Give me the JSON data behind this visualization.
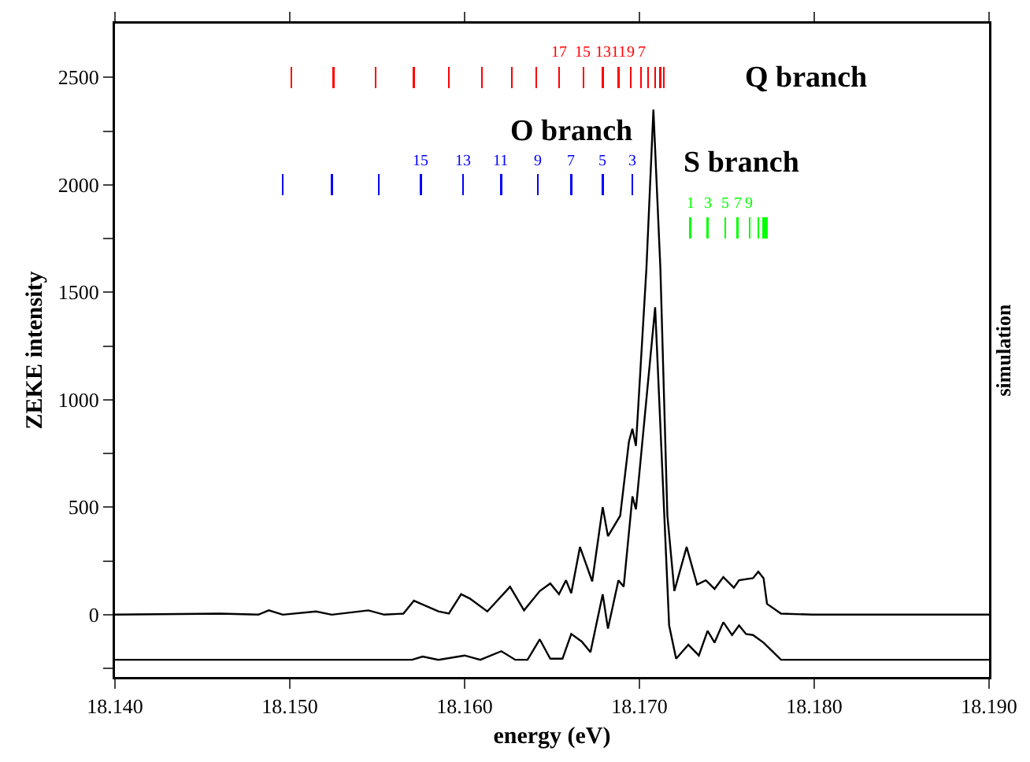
{
  "chart_data": {
    "type": "line",
    "xlabel": "energy (eV)",
    "ylabel": "ZEKE intensity",
    "y2label": "simulation",
    "xlim": [
      18.14,
      18.19
    ],
    "xticks": [
      {
        "value": 18.14,
        "label": "18.140"
      },
      {
        "value": 18.15,
        "label": "18.150"
      },
      {
        "value": 18.16,
        "label": "18.160"
      },
      {
        "value": 18.17,
        "label": "18.170"
      },
      {
        "value": 18.18,
        "label": "18.180"
      },
      {
        "value": 18.19,
        "label": "18.190"
      }
    ],
    "ylim": [
      -290,
      2750
    ],
    "yticks": [
      {
        "value": -250,
        "label": null
      },
      0,
      {
        "value": 250,
        "label": null
      },
      500,
      {
        "value": 750,
        "label": null
      },
      1000,
      {
        "value": 1250,
        "label": null
      },
      1500,
      {
        "value": 1750,
        "label": null
      },
      2000,
      {
        "value": 2250,
        "label": null
      },
      2500
    ],
    "grid": false,
    "legend": false,
    "marker": "none",
    "line_style": "solid",
    "series": [
      {
        "color": "#000000",
        "x": [
          18.14,
          18.146,
          18.1482,
          18.1488,
          18.1496,
          18.1515,
          18.1524,
          18.1545,
          18.1554,
          18.1565,
          18.1571,
          18.1585,
          18.1591,
          18.1598,
          18.1603,
          18.1613,
          18.1626,
          18.1634,
          18.1643,
          18.1649,
          18.1654,
          18.1658,
          18.1661,
          18.1666,
          18.1673,
          18.1679,
          18.1682,
          18.1689,
          18.1694,
          18.1696,
          18.1698,
          18.1704,
          18.1708,
          18.1712,
          18.1716,
          18.172,
          18.1727,
          18.1733,
          18.1738,
          18.1743,
          18.1748,
          18.1754,
          18.1757,
          18.1765,
          18.1768,
          18.1771,
          18.1773,
          18.1781,
          18.1799,
          18.19
        ],
        "values": [
          0,
          5,
          0,
          20,
          0,
          15,
          0,
          20,
          0,
          5,
          65,
          15,
          5,
          95,
          75,
          15,
          130,
          20,
          110,
          145,
          95,
          160,
          100,
          315,
          155,
          500,
          365,
          460,
          805,
          865,
          785,
          1610,
          2350,
          1610,
          460,
          110,
          315,
          140,
          160,
          120,
          175,
          125,
          160,
          170,
          200,
          170,
          50,
          5,
          0,
          0
        ]
      },
      {
        "color": "#000000",
        "x": [
          18.14,
          18.157,
          18.1576,
          18.1585,
          18.16,
          18.1609,
          18.1621,
          18.1629,
          18.1636,
          18.1643,
          18.1649,
          18.1656,
          18.1661,
          18.1667,
          18.1672,
          18.1679,
          18.1682,
          18.1688,
          18.1691,
          18.1696,
          18.1698,
          18.1709,
          18.1717,
          18.1721,
          18.1728,
          18.1734,
          18.1739,
          18.1743,
          18.1748,
          18.1753,
          18.1757,
          18.1761,
          18.1765,
          18.1771,
          18.1781,
          18.19
        ],
        "values": [
          -210,
          -210,
          -195,
          -210,
          -190,
          -210,
          -170,
          -210,
          -210,
          -115,
          -205,
          -205,
          -90,
          -125,
          -175,
          95,
          -65,
          160,
          130,
          550,
          490,
          1430,
          -50,
          -205,
          -140,
          -190,
          -75,
          -130,
          -35,
          -95,
          -50,
          -90,
          -95,
          -130,
          -210,
          -210
        ]
      },
      {
        "type": "bar",
        "name": "Q branch",
        "color": "#ff0000",
        "x": [
          18.1501,
          18.1525,
          18.1549,
          18.1571,
          18.1591,
          18.161,
          18.1627,
          18.1641,
          18.1654,
          18.1668,
          18.1679,
          18.1688,
          18.1695,
          18.1701,
          18.1705,
          18.1709,
          18.1712,
          18.1714
        ],
        "base": [
          2450,
          2450,
          2450,
          2450,
          2450,
          2450,
          2450,
          2450,
          2450,
          2450,
          2450,
          2450,
          2450,
          2450,
          2450,
          2450,
          2450,
          2450
        ],
        "values": [
          100,
          100,
          100,
          100,
          100,
          100,
          100,
          100,
          100,
          100,
          100,
          100,
          100,
          100,
          100,
          100,
          100,
          100
        ]
      },
      {
        "type": "bar",
        "name": "O branch",
        "color": "#0000ff",
        "x": [
          18.1496,
          18.1524,
          18.1551,
          18.1575,
          18.1599,
          18.1621,
          18.1642,
          18.1661,
          18.1679,
          18.1696
        ],
        "base": [
          1950,
          1950,
          1950,
          1950,
          1950,
          1950,
          1950,
          1950,
          1950,
          1950
        ],
        "values": [
          100,
          100,
          100,
          100,
          100,
          100,
          100,
          100,
          100,
          100
        ]
      },
      {
        "type": "bar",
        "name": "S branch",
        "color": "#00ff00",
        "x": [
          18.1729,
          18.1739,
          18.1749,
          18.1756,
          18.1763,
          18.1768,
          18.1771,
          18.1772,
          18.1773
        ],
        "base": [
          1750,
          1750,
          1750,
          1750,
          1750,
          1750,
          1750,
          1750,
          1750
        ],
        "values": [
          100,
          100,
          100,
          100,
          100,
          100,
          100,
          100,
          100
        ]
      }
    ],
    "annotations": [
      {
        "text": "17",
        "x": 18.1654,
        "y": 2550
      },
      {
        "text": "15",
        "x": 18.1668,
        "y": 2550
      },
      {
        "text": "13",
        "x": 18.1679,
        "y": 2550
      },
      {
        "text": "11",
        "x": 18.1688,
        "y": 2550
      },
      {
        "text": "9",
        "x": 18.1695,
        "y": 2550
      },
      {
        "text": "7",
        "x": 18.1701,
        "y": 2550
      },
      {
        "text": "15",
        "x": 18.1575,
        "y": 2050
      },
      {
        "text": "13",
        "x": 18.1599,
        "y": 2050
      },
      {
        "text": "11",
        "x": 18.1621,
        "y": 2050
      },
      {
        "text": "9",
        "x": 18.1642,
        "y": 2050
      },
      {
        "text": "7",
        "x": 18.1661,
        "y": 2050
      },
      {
        "text": "5",
        "x": 18.1679,
        "y": 2050
      },
      {
        "text": "3",
        "x": 18.1696,
        "y": 2050
      },
      {
        "text": "1",
        "x": 18.1729,
        "y": 1850
      },
      {
        "text": "3",
        "x": 18.1739,
        "y": 1850
      },
      {
        "text": "5",
        "x": 18.1749,
        "y": 1850
      },
      {
        "text": "7",
        "x": 18.1756,
        "y": 1850
      },
      {
        "text": "9",
        "x": 18.1763,
        "y": 1850
      }
    ]
  }
}
